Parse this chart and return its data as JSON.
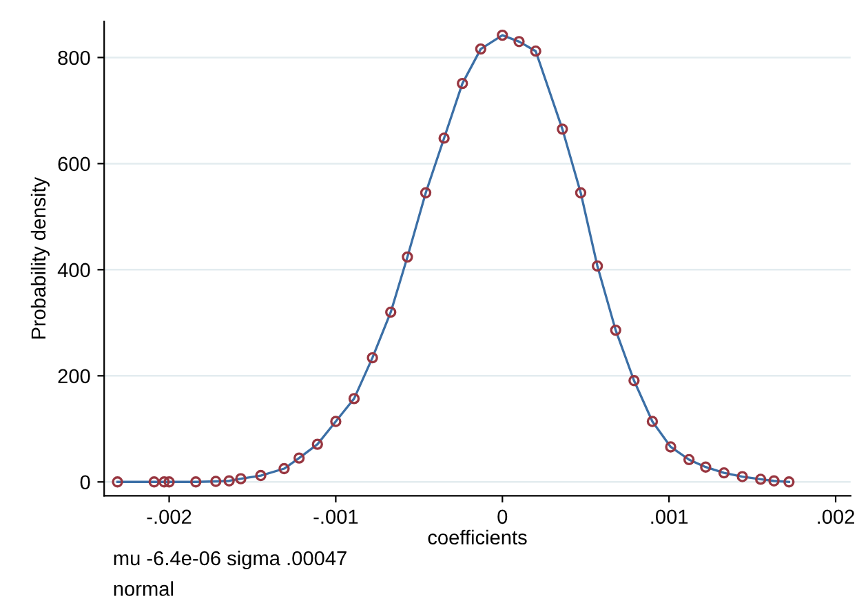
{
  "chart_data": {
    "type": "scatter",
    "xlabel": "coefficients",
    "ylabel": "Probability density",
    "x": [
      -0.00231,
      -0.00209,
      -0.00203,
      -0.002,
      -0.00184,
      -0.00172,
      -0.00164,
      -0.00157,
      -0.00145,
      -0.00131,
      -0.00122,
      -0.00111,
      -0.001,
      -0.00089,
      -0.00078,
      -0.00067,
      -0.00057,
      -0.00046,
      -0.00035,
      -0.00024,
      -0.00013,
      0,
      0.0001,
      0.0002,
      0.00036,
      0.00047,
      0.00057,
      0.00068,
      0.00079,
      0.0009,
      0.00101,
      0.00112,
      0.00122,
      0.00133,
      0.00144,
      0.00155,
      0.00163,
      0.00172
    ],
    "series": [
      {
        "type": "line",
        "color": "#3b6fa6",
        "marker": "none",
        "values": [
          0,
          0,
          0,
          0,
          0,
          1,
          2,
          6,
          12,
          25,
          45,
          71,
          114,
          157,
          234,
          320,
          424,
          545,
          648,
          751,
          816,
          842,
          830,
          812,
          665,
          545,
          407,
          286,
          191,
          114,
          66,
          42,
          28,
          17,
          10,
          5,
          2,
          0
        ]
      },
      {
        "color": "#983640",
        "marker": "circle",
        "values": [
          0,
          0,
          0,
          0,
          0,
          1,
          2,
          6,
          12,
          25,
          45,
          71,
          114,
          157,
          234,
          320,
          424,
          545,
          648,
          751,
          816,
          842,
          830,
          812,
          665,
          545,
          407,
          286,
          191,
          114,
          66,
          42,
          28,
          17,
          10,
          5,
          2,
          0
        ]
      }
    ],
    "xlim": [
      -0.00239,
      0.00209
    ],
    "ylim": [
      -26,
      868
    ],
    "xticks": [
      {
        "value": -0.002,
        "label": "-.002"
      },
      {
        "value": -0.001,
        "label": "-.001"
      },
      0,
      {
        "value": 0.001,
        "label": ".001"
      },
      {
        "value": 0.002,
        "label": ".002"
      }
    ],
    "yticks": [
      0,
      200,
      400,
      600,
      800
    ],
    "grid": "y",
    "annotations": [
      "mu -6.4e-06 sigma .00047",
      "normal"
    ]
  }
}
